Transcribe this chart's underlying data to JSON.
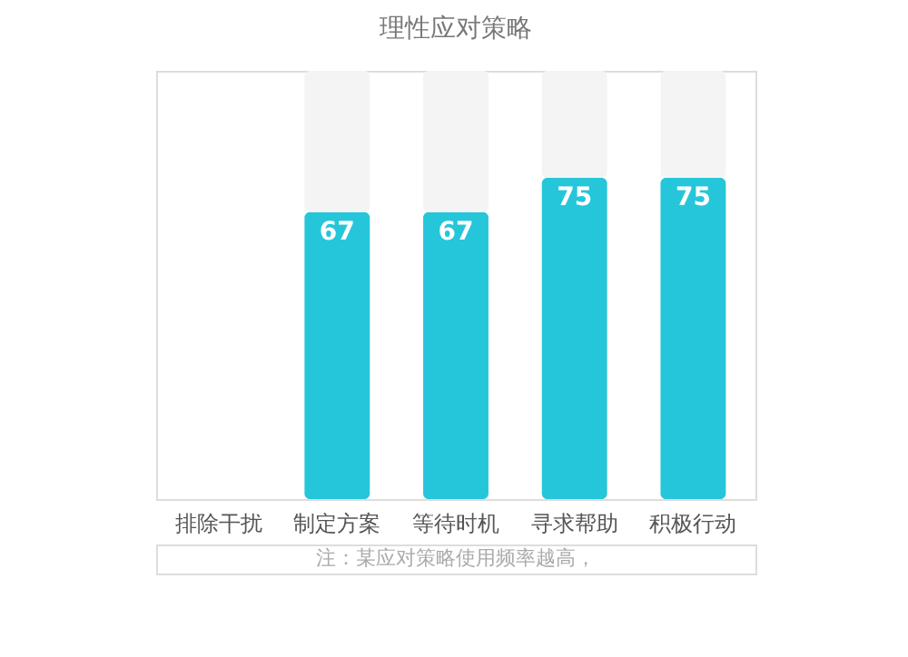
{
  "chart_data": {
    "type": "bar",
    "title": "理性应对策略",
    "categories": [
      "排除干扰",
      "制定方案",
      "等待时机",
      "寻求帮助",
      "积极行动"
    ],
    "stacked": true,
    "series": [
      {
        "color": "#26c6da",
        "values": [
          null,
          67,
          67,
          75,
          75
        ],
        "value_labels": [
          null,
          "67",
          "67",
          "75",
          "75"
        ]
      },
      {
        "color": "#f4f4f4",
        "values": [
          null,
          33,
          33,
          25,
          25
        ]
      }
    ],
    "ylim": [
      0,
      100
    ],
    "tick_labels": "x",
    "grid": false,
    "annotations": [
      "注：某应对策略使用频率越高，"
    ]
  }
}
